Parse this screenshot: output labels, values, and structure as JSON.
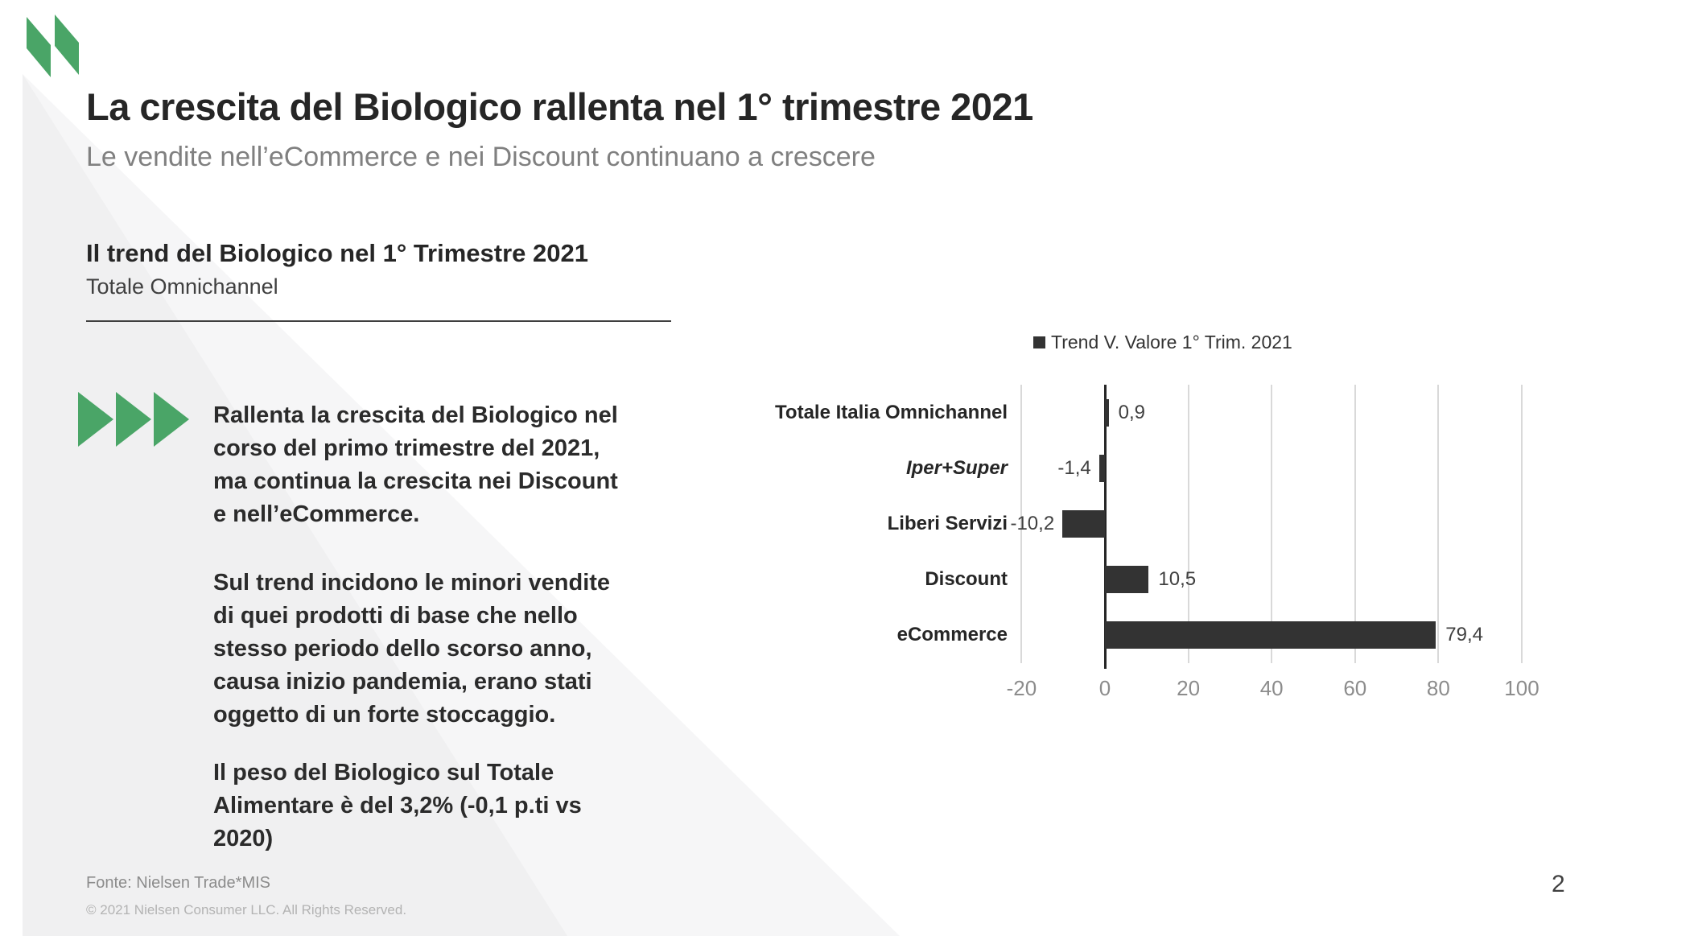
{
  "header": {
    "title": "La crescita del Biologico rallenta nel 1° trimestre 2021",
    "subtitle": "Le vendite nell’eCommerce e nei Discount continuano a crescere"
  },
  "section": {
    "heading": "Il trend del Biologico nel 1° Trimestre 2021",
    "subheading": "Totale Omnichannel"
  },
  "body": {
    "p1": "Rallenta la crescita del Biologico nel\ncorso del primo trimestre del 2021,\nma continua la crescita nei Discount\ne nell’eCommerce.",
    "p2": "Sul trend incidono le minori vendite\ndi quei prodotti di base che nello\nstesso periodo dello scorso anno,\ncausa inizio pandemia, erano stati\noggetto di un forte stoccaggio.",
    "p3": "Il peso del Biologico sul Totale\nAlimentare è del 3,2% (-0,1 p.ti vs\n2020)"
  },
  "chart_data": {
    "type": "bar",
    "orientation": "horizontal",
    "legend": "Trend V. Valore 1° Trim. 2021",
    "legend_position": "top",
    "categories": [
      "Totale Italia Omnichannel",
      "Iper+Super",
      "Liberi Servizi",
      "Discount",
      "eCommerce"
    ],
    "category_styles": [
      "normal",
      "italic",
      "normal",
      "normal",
      "normal"
    ],
    "values": [
      0.9,
      -1.4,
      -10.2,
      10.5,
      79.4
    ],
    "value_labels": [
      "0,9",
      "-1,4",
      "-10,2",
      "10,5",
      "79,4"
    ],
    "x_ticks": [
      -20,
      0,
      20,
      40,
      60,
      80,
      100
    ],
    "x_tick_labels": [
      "-20",
      "0",
      "20",
      "40",
      "60",
      "80",
      "100"
    ],
    "xlim": [
      -20,
      100
    ],
    "grid": true,
    "bar_color": "#333333",
    "gridline_color": "#d9d9d9",
    "axis_color": "#262626"
  },
  "footer": {
    "source": "Fonte: Nielsen Trade*MIS",
    "copyright": "© 2021 Nielsen Consumer LLC. All Rights Reserved.",
    "page_number": "2"
  },
  "colors": {
    "accent_green": "#4aa567",
    "background_triangle": "#f0f0f1",
    "title_text": "#262626",
    "subtitle_text": "#808080"
  }
}
